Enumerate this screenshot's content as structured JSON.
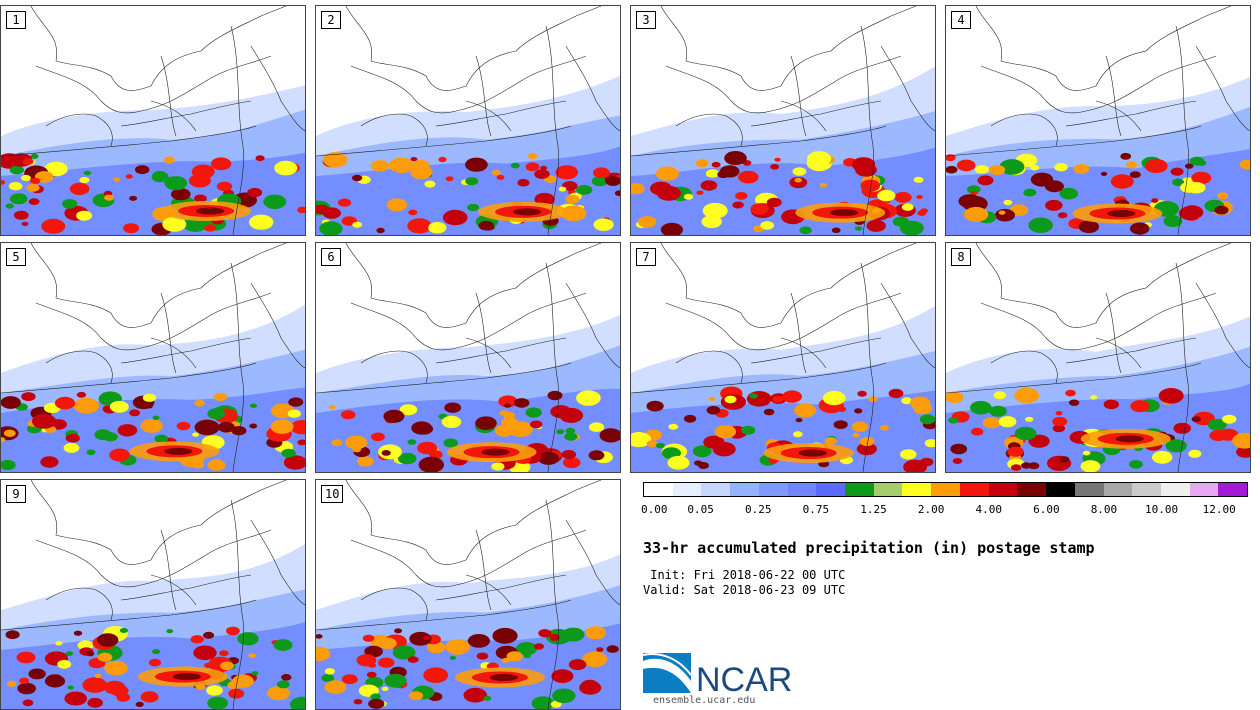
{
  "panels": [
    {
      "label": "1"
    },
    {
      "label": "2"
    },
    {
      "label": "3"
    },
    {
      "label": "4"
    },
    {
      "label": "5"
    },
    {
      "label": "6"
    },
    {
      "label": "7"
    },
    {
      "label": "8"
    },
    {
      "label": "9"
    },
    {
      "label": "10"
    }
  ],
  "colorbar": {
    "colors": [
      "#ffffff",
      "#e6efff",
      "#c5d6ff",
      "#93b2ff",
      "#7e9aff",
      "#6f86ff",
      "#5b6bff",
      "#0d9a1b",
      "#a6cc6d",
      "#fefe21",
      "#fd9c0b",
      "#f2160b",
      "#c4000a",
      "#790003",
      "#000000",
      "#767676",
      "#a8a8a8",
      "#cbcbcb",
      "#efefef",
      "#e6a9f2",
      "#a51ad4"
    ],
    "ticks": [
      {
        "label": "0.00",
        "index": 0
      },
      {
        "label": "0.05",
        "index": 2
      },
      {
        "label": "0.25",
        "index": 4
      },
      {
        "label": "0.75",
        "index": 6
      },
      {
        "label": "1.25",
        "index": 8
      },
      {
        "label": "2.00",
        "index": 10
      },
      {
        "label": "4.00",
        "index": 12
      },
      {
        "label": "6.00",
        "index": 14
      },
      {
        "label": "8.00",
        "index": 16
      },
      {
        "label": "10.00",
        "index": 18
      },
      {
        "label": "12.00",
        "index": 20
      }
    ]
  },
  "title": "33-hr accumulated precipitation (in) postage stamp",
  "init_line": " Init: Fri 2018-06-22 00 UTC",
  "valid_line": "Valid: Sat 2018-06-23 09 UTC",
  "logo": {
    "text": "NCAR",
    "color": "#1b4b7e",
    "swoosh": "#0a7dc3"
  },
  "site": "ensemble.ucar.edu"
}
